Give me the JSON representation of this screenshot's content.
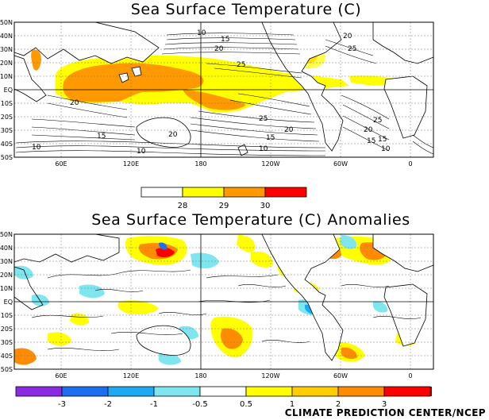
{
  "top_map": {
    "title": "Sea Surface Temperature (C)",
    "lat_labels": [
      "50N",
      "40N",
      "30N",
      "20N",
      "10N",
      "EQ",
      "10S",
      "20S",
      "30S",
      "40S",
      "50S"
    ],
    "lon_labels": [
      "60E",
      "120E",
      "180",
      "120W",
      "60W",
      "0"
    ],
    "contour_labels": [
      "10",
      "15",
      "20",
      "25",
      "20",
      "15",
      "10",
      "10",
      "15",
      "20",
      "25",
      "20",
      "15",
      "10",
      "25",
      "20",
      "25",
      "20",
      "15",
      "10"
    ],
    "colorbar": {
      "colors": [
        "#ffffff",
        "#ffff00",
        "#ff9900",
        "#ff0000"
      ],
      "tick_labels": [
        "28",
        "29",
        "30"
      ]
    }
  },
  "bottom_map": {
    "title": "Sea Surface Temperature (C) Anomalies",
    "lat_labels": [
      "50N",
      "40N",
      "30N",
      "20N",
      "10N",
      "EQ",
      "10S",
      "20S",
      "30S",
      "40S",
      "50S"
    ],
    "lon_labels": [
      "60E",
      "120E",
      "180",
      "120W",
      "60W",
      "0"
    ],
    "colorbar": {
      "colors": [
        "#8a2be2",
        "#1e6ff0",
        "#1eaaf0",
        "#7fe6f0",
        "#ffffff",
        "#ffff00",
        "#ffcc00",
        "#ff8c00",
        "#ff0000",
        "#8b0000"
      ],
      "tick_labels": [
        "-3",
        "-2",
        "-1",
        "-0.5",
        "0.5",
        "1",
        "2",
        "3"
      ]
    }
  },
  "credit": "CLIMATE PREDICTION CENTER/NCEP"
}
